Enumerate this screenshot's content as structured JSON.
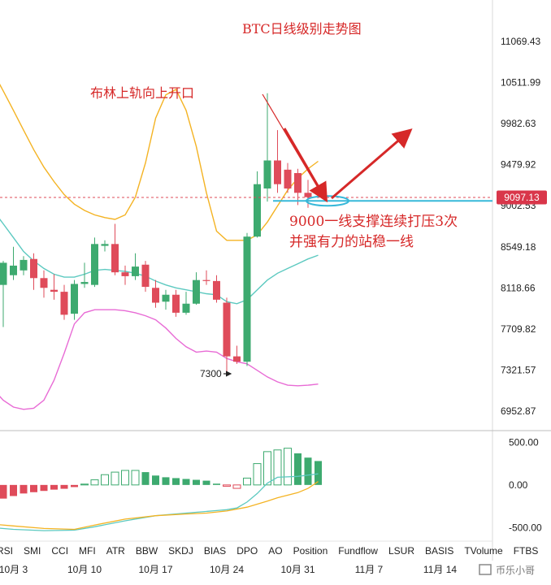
{
  "colors": {
    "up": "#3daa6f",
    "down": "#df4b5a",
    "upper_band": "#f4b323",
    "middle_band": "#5cc9c0",
    "lower_band": "#e86bd5",
    "annotation": "#d62828",
    "price_tag_bg": "#d9364a",
    "support_line": "#36b8d9"
  },
  "annotations": {
    "title": "BTC日线级别走势图",
    "bollinger_note": "布林上轨向上开口",
    "support_note_line1": "9000一线支撑连续打压3次",
    "support_note_line2": "并强有力的站稳一线",
    "low_label": "7300",
    "current_price": "9097.13",
    "watermark": "币乐小哥"
  },
  "indicator_tabs": [
    "RSI",
    "SMI",
    "CCI",
    "MFI",
    "ATR",
    "BBW",
    "SKDJ",
    "BIAS",
    "DPO",
    "AO",
    "Position",
    "Fundflow",
    "LSUR",
    "BASIS",
    "TVolume",
    "FTBS"
  ],
  "chart_data": {
    "type": "candlestick",
    "title": "BTC日线级别走势图",
    "price_axis": {
      "ticks": [
        "11069.43",
        "10511.99",
        "9982.63",
        "9479.92",
        "9002.53",
        "8549.18",
        "8118.66",
        "7709.82",
        "7321.57",
        "6952.87"
      ],
      "tick_values": [
        11069.43,
        10511.99,
        9982.63,
        9479.92,
        9002.53,
        8549.18,
        8118.66,
        7709.82,
        7321.57,
        6952.87
      ],
      "scale": "log",
      "range": [
        6800,
        11600
      ]
    },
    "x_axis": {
      "labels": [
        "10月 3",
        "10月 10",
        "10月 17",
        "10月 24",
        "10月 31",
        "11月 7",
        "11月 14"
      ],
      "label_index": [
        -2,
        5,
        12,
        19,
        26,
        33,
        40
      ]
    },
    "candles": [
      {
        "i": -3,
        "o": 8150,
        "h": 8400,
        "l": 7730,
        "c": 8380
      },
      {
        "i": -2,
        "o": 8250,
        "h": 8550,
        "l": 8200,
        "c": 8350
      },
      {
        "i": -1,
        "o": 8300,
        "h": 8450,
        "l": 8250,
        "c": 8410
      },
      {
        "i": 0,
        "o": 8420,
        "h": 8480,
        "l": 8100,
        "c": 8220
      },
      {
        "i": 1,
        "o": 8220,
        "h": 8300,
        "l": 8020,
        "c": 8120
      },
      {
        "i": 2,
        "o": 8100,
        "h": 8260,
        "l": 8000,
        "c": 8080
      },
      {
        "i": 3,
        "o": 8080,
        "h": 8150,
        "l": 7800,
        "c": 7850
      },
      {
        "i": 4,
        "o": 7860,
        "h": 8200,
        "l": 7800,
        "c": 8160
      },
      {
        "i": 5,
        "o": 8160,
        "h": 8380,
        "l": 8120,
        "c": 8180
      },
      {
        "i": 6,
        "o": 8150,
        "h": 8650,
        "l": 8130,
        "c": 8580
      },
      {
        "i": 7,
        "o": 8560,
        "h": 8620,
        "l": 8500,
        "c": 8580
      },
      {
        "i": 8,
        "o": 8580,
        "h": 8800,
        "l": 8250,
        "c": 8280
      },
      {
        "i": 9,
        "o": 8280,
        "h": 8350,
        "l": 8150,
        "c": 8240
      },
      {
        "i": 10,
        "o": 8240,
        "h": 8480,
        "l": 8200,
        "c": 8340
      },
      {
        "i": 11,
        "o": 8360,
        "h": 8400,
        "l": 8080,
        "c": 8130
      },
      {
        "i": 12,
        "o": 8120,
        "h": 8200,
        "l": 7920,
        "c": 7970
      },
      {
        "i": 13,
        "o": 7980,
        "h": 8100,
        "l": 7900,
        "c": 8050
      },
      {
        "i": 14,
        "o": 8050,
        "h": 8100,
        "l": 7830,
        "c": 7870
      },
      {
        "i": 15,
        "o": 7870,
        "h": 8080,
        "l": 7850,
        "c": 7960
      },
      {
        "i": 16,
        "o": 7960,
        "h": 8280,
        "l": 7950,
        "c": 8200
      },
      {
        "i": 17,
        "o": 8200,
        "h": 8300,
        "l": 8150,
        "c": 8190
      },
      {
        "i": 18,
        "o": 8190,
        "h": 8250,
        "l": 7970,
        "c": 8000
      },
      {
        "i": 19,
        "o": 7970,
        "h": 8020,
        "l": 7300,
        "c": 7450
      },
      {
        "i": 20,
        "o": 7450,
        "h": 7550,
        "l": 7380,
        "c": 7400
      },
      {
        "i": 21,
        "o": 7400,
        "h": 8700,
        "l": 7360,
        "c": 8660
      },
      {
        "i": 22,
        "o": 8660,
        "h": 9400,
        "l": 8650,
        "c": 9250
      },
      {
        "i": 23,
        "o": 9200,
        "h": 10370,
        "l": 9050,
        "c": 9530
      },
      {
        "i": 24,
        "o": 9530,
        "h": 9900,
        "l": 9150,
        "c": 9250
      },
      {
        "i": 25,
        "o": 9420,
        "h": 9500,
        "l": 9150,
        "c": 9200
      },
      {
        "i": 26,
        "o": 9380,
        "h": 9430,
        "l": 9010,
        "c": 9150
      },
      {
        "i": 27,
        "o": 9150,
        "h": 9300,
        "l": 8980,
        "c": 9100
      }
    ],
    "bollinger": {
      "upper": [
        [
          -8,
          11600
        ],
        [
          -7,
          11400
        ],
        [
          -6,
          11150
        ],
        [
          -5,
          10900
        ],
        [
          -4,
          10650
        ],
        [
          -3,
          10400
        ],
        [
          -2,
          10150
        ],
        [
          -1,
          9900
        ],
        [
          0,
          9660
        ],
        [
          1,
          9450
        ],
        [
          2,
          9280
        ],
        [
          3,
          9130
        ],
        [
          4,
          9020
        ],
        [
          5,
          8950
        ],
        [
          6,
          8900
        ],
        [
          7,
          8870
        ],
        [
          8,
          8850
        ],
        [
          9,
          8900
        ],
        [
          10,
          9100
        ],
        [
          11,
          9500
        ],
        [
          12,
          10050
        ],
        [
          13,
          10350
        ],
        [
          14,
          10420
        ],
        [
          15,
          10150
        ],
        [
          16,
          9700
        ],
        [
          17,
          9150
        ],
        [
          18,
          8720
        ],
        [
          19,
          8620
        ],
        [
          20,
          8620
        ],
        [
          21,
          8620
        ],
        [
          22,
          8680
        ],
        [
          23,
          8820
        ],
        [
          24,
          9000
        ],
        [
          25,
          9180
        ],
        [
          26,
          9320
        ],
        [
          27,
          9430
        ],
        [
          28,
          9520
        ]
      ],
      "middle": [
        [
          -8,
          9450
        ],
        [
          -7,
          9350
        ],
        [
          -6,
          9230
        ],
        [
          -5,
          9100
        ],
        [
          -4,
          8950
        ],
        [
          -3,
          8800
        ],
        [
          -2,
          8650
        ],
        [
          -1,
          8500
        ],
        [
          0,
          8400
        ],
        [
          1,
          8320
        ],
        [
          2,
          8260
        ],
        [
          3,
          8230
        ],
        [
          4,
          8230
        ],
        [
          5,
          8260
        ],
        [
          6,
          8300
        ],
        [
          7,
          8310
        ],
        [
          8,
          8300
        ],
        [
          9,
          8290
        ],
        [
          10,
          8270
        ],
        [
          11,
          8240
        ],
        [
          12,
          8190
        ],
        [
          13,
          8150
        ],
        [
          14,
          8120
        ],
        [
          15,
          8100
        ],
        [
          16,
          8080
        ],
        [
          17,
          8060
        ],
        [
          18,
          8050
        ],
        [
          19,
          7980
        ],
        [
          20,
          7960
        ],
        [
          21,
          8000
        ],
        [
          22,
          8100
        ],
        [
          23,
          8200
        ],
        [
          24,
          8270
        ],
        [
          25,
          8320
        ],
        [
          26,
          8370
        ],
        [
          27,
          8420
        ],
        [
          28,
          8460
        ]
      ],
      "lower": [
        [
          -8,
          7700
        ],
        [
          -7,
          7550
        ],
        [
          -6,
          7400
        ],
        [
          -5,
          7250
        ],
        [
          -4,
          7150
        ],
        [
          -3,
          7050
        ],
        [
          -2,
          6990
        ],
        [
          -1,
          6970
        ],
        [
          0,
          6980
        ],
        [
          1,
          7050
        ],
        [
          2,
          7230
        ],
        [
          3,
          7480
        ],
        [
          4,
          7760
        ],
        [
          5,
          7870
        ],
        [
          6,
          7900
        ],
        [
          7,
          7900
        ],
        [
          8,
          7900
        ],
        [
          9,
          7890
        ],
        [
          10,
          7870
        ],
        [
          11,
          7840
        ],
        [
          12,
          7800
        ],
        [
          13,
          7720
        ],
        [
          14,
          7620
        ],
        [
          15,
          7540
        ],
        [
          16,
          7490
        ],
        [
          17,
          7500
        ],
        [
          18,
          7490
        ],
        [
          19,
          7430
        ],
        [
          20,
          7400
        ],
        [
          21,
          7380
        ],
        [
          22,
          7320
        ],
        [
          23,
          7260
        ],
        [
          24,
          7215
        ],
        [
          25,
          7185
        ],
        [
          26,
          7180
        ],
        [
          27,
          7185
        ],
        [
          28,
          7195
        ]
      ]
    },
    "histogram_axis": {
      "ticks": [
        "500.00",
        "0.00",
        "-500.00"
      ],
      "tick_values": [
        500,
        0,
        -500
      ],
      "range": [
        -620,
        560
      ]
    },
    "histogram": [
      [
        -7,
        -340
      ],
      [
        -6,
        -300
      ],
      [
        -5,
        -250
      ],
      [
        -4,
        -200
      ],
      [
        -3,
        -160
      ],
      [
        -2,
        -130
      ],
      [
        -1,
        -100
      ],
      [
        0,
        -85
      ],
      [
        1,
        -70
      ],
      [
        2,
        -55
      ],
      [
        3,
        -45
      ],
      [
        4,
        -25
      ],
      [
        5,
        10
      ],
      [
        6,
        60
      ],
      [
        7,
        120
      ],
      [
        8,
        150
      ],
      [
        9,
        170
      ],
      [
        10,
        170
      ],
      [
        11,
        150
      ],
      [
        12,
        110
      ],
      [
        13,
        90
      ],
      [
        14,
        80
      ],
      [
        15,
        70
      ],
      [
        16,
        60
      ],
      [
        17,
        50
      ],
      [
        18,
        15
      ],
      [
        19,
        -15
      ],
      [
        20,
        -40
      ],
      [
        21,
        80
      ],
      [
        22,
        250
      ],
      [
        23,
        390
      ],
      [
        24,
        410
      ],
      [
        25,
        430
      ],
      [
        26,
        370
      ],
      [
        27,
        320
      ],
      [
        28,
        280
      ]
    ],
    "macd_lines": {
      "line_a": [
        [
          -8,
          -470
        ],
        [
          -5,
          -490
        ],
        [
          -2,
          -520
        ],
        [
          1,
          -535
        ],
        [
          4,
          -530
        ],
        [
          6,
          -490
        ],
        [
          9,
          -420
        ],
        [
          12,
          -360
        ],
        [
          15,
          -330
        ],
        [
          18,
          -300
        ],
        [
          19,
          -290
        ],
        [
          20,
          -270
        ],
        [
          21,
          -200
        ],
        [
          22,
          -100
        ],
        [
          23,
          20
        ],
        [
          24,
          90
        ],
        [
          26,
          100
        ],
        [
          28,
          130
        ]
      ],
      "line_b": [
        [
          -8,
          -420
        ],
        [
          -5,
          -450
        ],
        [
          -2,
          -480
        ],
        [
          1,
          -510
        ],
        [
          4,
          -520
        ],
        [
          6,
          -470
        ],
        [
          9,
          -400
        ],
        [
          12,
          -360
        ],
        [
          15,
          -340
        ],
        [
          17,
          -330
        ],
        [
          19,
          -305
        ],
        [
          21,
          -260
        ],
        [
          23,
          -190
        ],
        [
          24,
          -150
        ],
        [
          26,
          -90
        ],
        [
          27,
          -40
        ],
        [
          28,
          40
        ]
      ]
    }
  }
}
